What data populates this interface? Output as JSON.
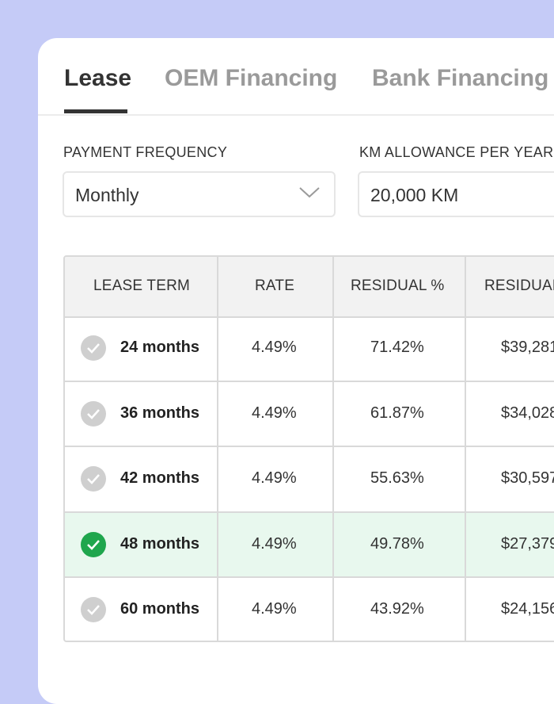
{
  "tabs": [
    {
      "label": "Lease",
      "active": true
    },
    {
      "label": "OEM Financing",
      "active": false
    },
    {
      "label": "Bank Financing",
      "active": false
    }
  ],
  "payment_frequency": {
    "label": "PAYMENT FREQUENCY",
    "value": "Monthly"
  },
  "km_allowance": {
    "label": "KM ALLOWANCE PER YEAR",
    "value": "20,000 KM"
  },
  "table": {
    "headers": [
      "LEASE TERM",
      "RATE",
      "RESIDUAL %",
      "RESIDUAL"
    ],
    "rows": [
      {
        "term": "24 months",
        "rate": "4.49%",
        "residual_pct": "71.42%",
        "residual": "$39,281",
        "selected": false
      },
      {
        "term": "36 months",
        "rate": "4.49%",
        "residual_pct": "61.87%",
        "residual": "$34,028",
        "selected": false
      },
      {
        "term": "42 months",
        "rate": "4.49%",
        "residual_pct": "55.63%",
        "residual": "$30,597",
        "selected": false
      },
      {
        "term": "48 months",
        "rate": "4.49%",
        "residual_pct": "49.78%",
        "residual": "$27,379",
        "selected": true
      },
      {
        "term": "60 months",
        "rate": "4.49%",
        "residual_pct": "43.92%",
        "residual": "$24,156",
        "selected": false
      }
    ]
  },
  "colors": {
    "background": "#c5cbf7",
    "selected_row": "#e8f8ee",
    "check_selected": "#1fa64d",
    "check_unselected": "#cfcfcf"
  }
}
